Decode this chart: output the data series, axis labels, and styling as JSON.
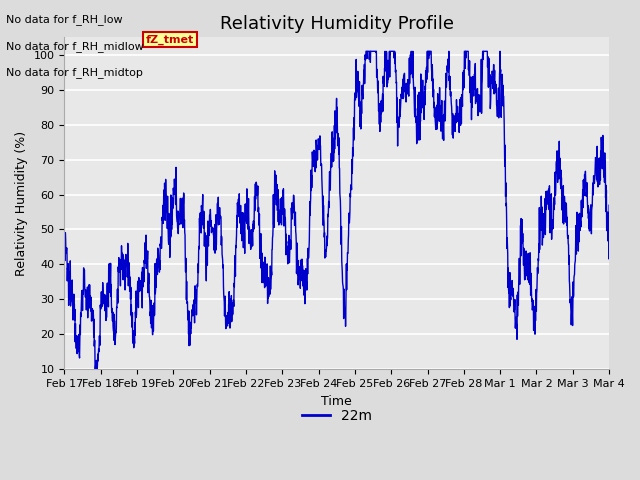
{
  "title": "Relativity Humidity Profile",
  "ylabel": "Relativity Humidity (%)",
  "xlabel": "Time",
  "ylim": [
    10,
    105
  ],
  "yticks": [
    10,
    20,
    30,
    40,
    50,
    60,
    70,
    80,
    90,
    100
  ],
  "bg_color": "#dcdcdc",
  "plot_bg_color": "#e8e8e8",
  "line_color": "#0000cc",
  "line_width": 1.0,
  "legend_label": "22m",
  "annotations": [
    "No data for f_RH_low",
    "No data for f_RH_midlow",
    "No data for f_RH_midtop"
  ],
  "legend_box_color": "#ffff99",
  "legend_box_edge": "#cc0000",
  "legend_text_color": "#cc0000",
  "legend_box_text": "fZ_tmet",
  "xtick_labels": [
    "Feb 17",
    "Feb 18",
    "Feb 19",
    "Feb 20",
    "Feb 21",
    "Feb 22",
    "Feb 23",
    "Feb 24",
    "Feb 25",
    "Feb 26",
    "Feb 27",
    "Feb 28",
    "Mar 1",
    "Mar 2",
    "Mar 3",
    "Mar 4"
  ],
  "title_fontsize": 13,
  "axis_fontsize": 9,
  "tick_fontsize": 8,
  "annotation_fontsize": 8
}
